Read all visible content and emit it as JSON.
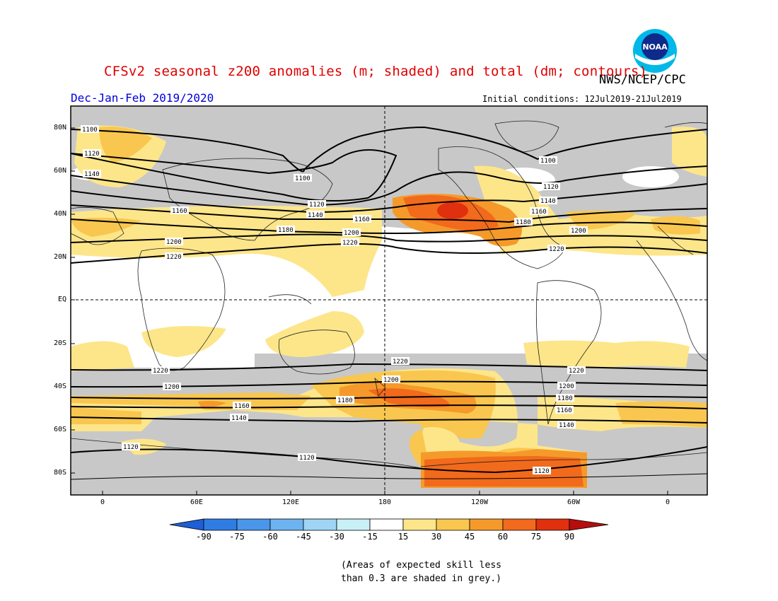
{
  "title": "CFSv2 seasonal z200 anomalies (m; shaded) and total (dm; contours)",
  "agency": "NWS/NCEP/CPC",
  "logo_text": "NOAA",
  "season": "Dec-Jan-Feb 2019/2020",
  "initial_conditions": "Initial conditions: 12Jul2019-21Jul2019",
  "lat_labels": [
    "80N",
    "60N",
    "40N",
    "20N",
    "EQ",
    "20S",
    "40S",
    "60S",
    "80S"
  ],
  "lon_labels": [
    "0",
    "60E",
    "120E",
    "180",
    "120W",
    "60W",
    "0"
  ],
  "colorbar": {
    "ticks": [
      "-90",
      "-75",
      "-60",
      "-45",
      "-30",
      "-15",
      "15",
      "30",
      "45",
      "60",
      "75",
      "90"
    ],
    "colors": [
      "#1e5fd8",
      "#2f7de3",
      "#4a96ea",
      "#6db3f0",
      "#9fd4f5",
      "#c8f0f7",
      "#ffffff",
      "#fde68a",
      "#f9c74f",
      "#f59a2a",
      "#f26a1b",
      "#e0300e",
      "#b70d0d"
    ]
  },
  "contour_labels": [
    "1100",
    "1120",
    "1140",
    "1160",
    "1180",
    "1200",
    "1220"
  ],
  "note_line1": "(Areas of expected skill less",
  "note_line2": "than 0.3 are shaded in grey.)",
  "colors": {
    "title": "#e00000",
    "season": "#0000dd",
    "skill_grey": "#c8c8c8",
    "land_outline": "#222222"
  }
}
